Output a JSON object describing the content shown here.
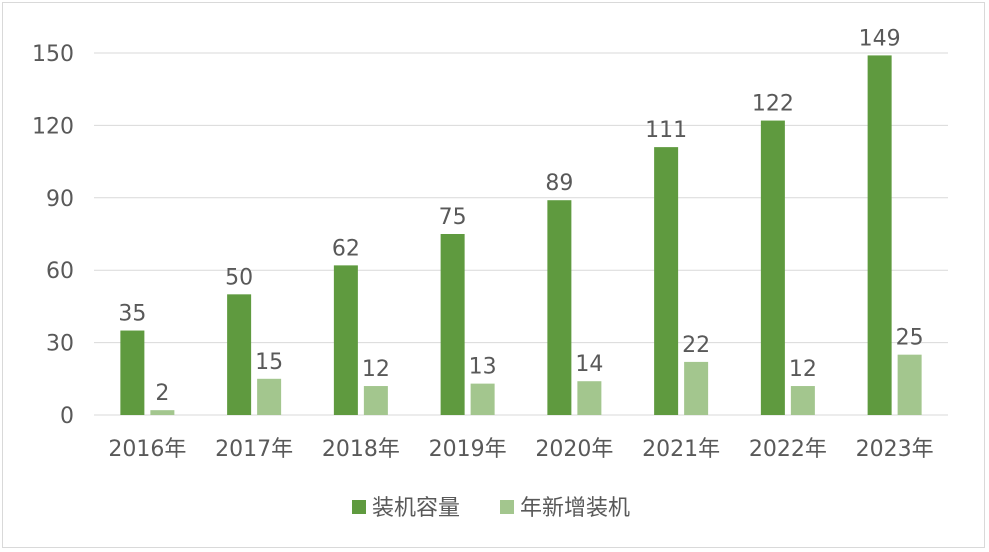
{
  "chart_data": {
    "type": "bar",
    "categories": [
      "2016年",
      "2017年",
      "2018年",
      "2019年",
      "2020年",
      "2021年",
      "2022年",
      "2023年"
    ],
    "series": [
      {
        "name": "装机容量",
        "color": "#5f9a3f",
        "values": [
          35,
          50,
          62,
          75,
          89,
          111,
          122,
          149
        ]
      },
      {
        "name": "年新增装机",
        "color": "#a3c68e",
        "values": [
          2,
          15,
          12,
          13,
          14,
          22,
          12,
          25
        ]
      }
    ],
    "ylim": [
      0,
      150
    ],
    "yticks": [
      0,
      30,
      60,
      90,
      120,
      150
    ],
    "grid": true,
    "legend_position": "bottom"
  }
}
